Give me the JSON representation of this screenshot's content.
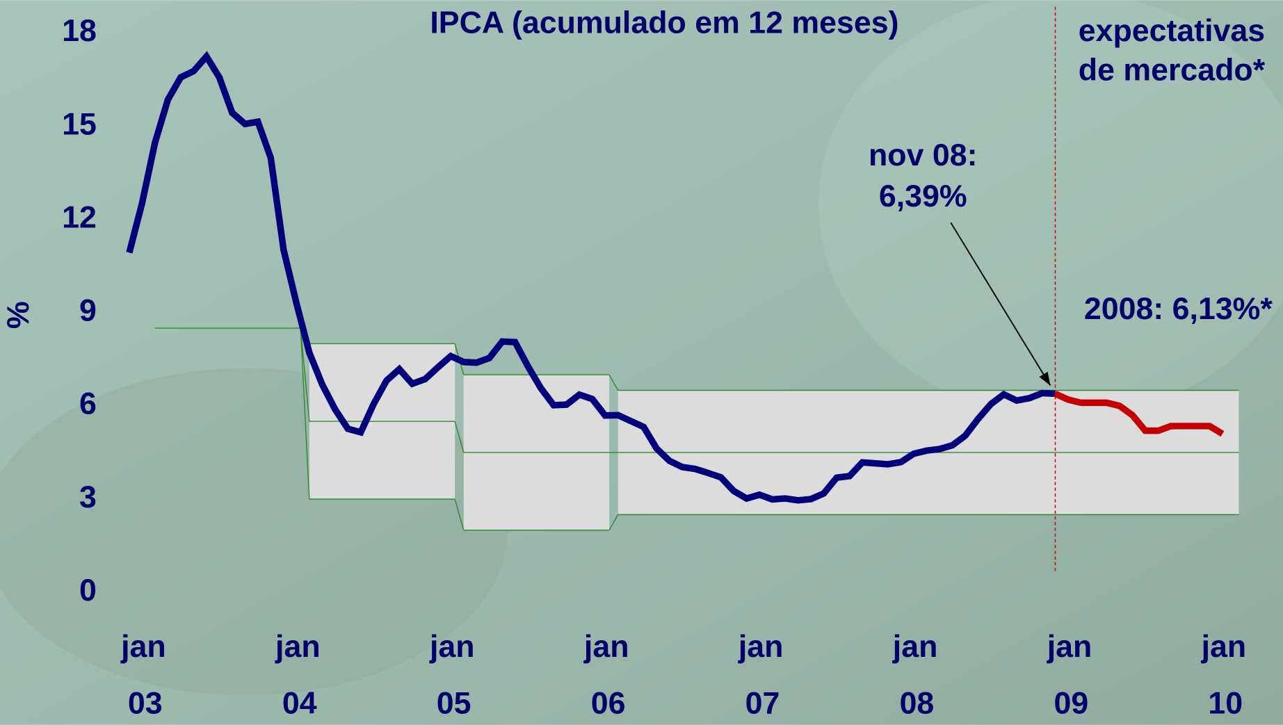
{
  "chart_data": {
    "type": "line",
    "title": "IPCA (acumulado em 12 meses)",
    "y_label": "%",
    "ylim": [
      0,
      18
    ],
    "yticks": [
      0,
      3,
      6,
      9,
      12,
      15,
      18
    ],
    "xlim": [
      "2002-11",
      "2009-12"
    ],
    "xticks": [
      {
        "value": "2003-01",
        "label": "jan"
      },
      {
        "value": "2004-01",
        "label": "jan"
      },
      {
        "value": "2005-01",
        "label": "jan"
      },
      {
        "value": "2006-01",
        "label": "jan"
      },
      {
        "value": "2007-01",
        "label": "jan"
      },
      {
        "value": "2008-01",
        "label": "jan"
      },
      {
        "value": "2009-01",
        "label": "jan"
      },
      {
        "value": "2010-01",
        "label": "jan"
      }
    ],
    "xticks_year": [
      {
        "value": "2003-01",
        "label": "03"
      },
      {
        "value": "2004-01",
        "label": "04"
      },
      {
        "value": "2005-01",
        "label": "05"
      },
      {
        "value": "2006-01",
        "label": "06"
      },
      {
        "value": "2007-01",
        "label": "07"
      },
      {
        "value": "2008-01",
        "label": "08"
      },
      {
        "value": "2009-01",
        "label": "09"
      },
      {
        "value": "2010-01",
        "label": "10"
      }
    ],
    "x": [
      "2002-11",
      "2002-12",
      "2003-01",
      "2003-02",
      "2003-03",
      "2003-04",
      "2003-05",
      "2003-06",
      "2003-07",
      "2003-08",
      "2003-09",
      "2003-10",
      "2003-11",
      "2003-12",
      "2004-01",
      "2004-02",
      "2004-03",
      "2004-04",
      "2004-05",
      "2004-06",
      "2004-07",
      "2004-08",
      "2004-09",
      "2004-10",
      "2004-11",
      "2004-12",
      "2005-01",
      "2005-02",
      "2005-03",
      "2005-04",
      "2005-05",
      "2005-06",
      "2005-07",
      "2005-08",
      "2005-09",
      "2005-10",
      "2005-11",
      "2005-12",
      "2006-01",
      "2006-02",
      "2006-03",
      "2006-04",
      "2006-05",
      "2006-06",
      "2006-07",
      "2006-08",
      "2006-09",
      "2006-10",
      "2006-11",
      "2006-12",
      "2007-01",
      "2007-02",
      "2007-03",
      "2007-04",
      "2007-05",
      "2007-06",
      "2007-07",
      "2007-08",
      "2007-09",
      "2007-10",
      "2007-11",
      "2007-12",
      "2008-01",
      "2008-02",
      "2008-03",
      "2008-04",
      "2008-05",
      "2008-06",
      "2008-07",
      "2008-08",
      "2008-09",
      "2008-10",
      "2008-11",
      "2008-12",
      "2009-01",
      "2009-02",
      "2009-03",
      "2009-04",
      "2009-05",
      "2009-06",
      "2009-07",
      "2009-08",
      "2009-09",
      "2009-10",
      "2009-11",
      "2009-12"
    ],
    "series": [
      {
        "color": "#00007a",
        "values": [
          10.93,
          12.53,
          14.47,
          15.85,
          16.57,
          16.77,
          17.24,
          16.57,
          15.43,
          15.07,
          15.14,
          13.98,
          11.02,
          9.3,
          7.71,
          6.69,
          5.89,
          5.26,
          5.15,
          6.06,
          6.81,
          7.18,
          6.71,
          6.86,
          7.24,
          7.6,
          7.41,
          7.39,
          7.54,
          8.07,
          8.05,
          7.27,
          6.57,
          6.02,
          6.04,
          6.36,
          6.22,
          5.69,
          5.7,
          5.51,
          5.32,
          4.63,
          4.23,
          4.03,
          3.97,
          3.84,
          3.7,
          3.26,
          3.02,
          3.14,
          2.99,
          3.02,
          2.96,
          3.0,
          3.18,
          3.69,
          3.74,
          4.18,
          4.15,
          4.12,
          4.19,
          4.46,
          4.56,
          4.61,
          4.73,
          5.04,
          5.58,
          6.06,
          6.37,
          6.17,
          6.25,
          6.41,
          6.39,
          null,
          null,
          null,
          null,
          null,
          null,
          null,
          null,
          null,
          null,
          null,
          null,
          null
        ]
      },
      {
        "color": "#c40000",
        "values": [
          null,
          null,
          null,
          null,
          null,
          null,
          null,
          null,
          null,
          null,
          null,
          null,
          null,
          null,
          null,
          null,
          null,
          null,
          null,
          null,
          null,
          null,
          null,
          null,
          null,
          null,
          null,
          null,
          null,
          null,
          null,
          null,
          null,
          null,
          null,
          null,
          null,
          null,
          null,
          null,
          null,
          null,
          null,
          null,
          null,
          null,
          null,
          null,
          null,
          null,
          null,
          null,
          null,
          null,
          null,
          null,
          null,
          null,
          null,
          null,
          null,
          null,
          null,
          null,
          null,
          null,
          null,
          null,
          null,
          null,
          null,
          null,
          6.39,
          6.2,
          6.1,
          6.1,
          6.1,
          6.0,
          5.7,
          5.2,
          5.2,
          5.35,
          5.35,
          5.35,
          5.35,
          5.1
        ]
      }
    ],
    "target_bands": [
      {
        "start": "2003-01",
        "end": "2003-12",
        "center": 8.5
      },
      {
        "start": "2004-01",
        "end": "2004-12",
        "upper": 8,
        "center": 5.5,
        "lower": 3
      },
      {
        "start": "2005-01",
        "end": "2005-12",
        "upper": 7,
        "center": 4.5,
        "lower": 2
      },
      {
        "start": "2006-01",
        "end": "2009-12",
        "upper": 6.5,
        "center": 4.5,
        "lower": 2.5
      }
    ],
    "band_color": "#dcdcdc",
    "band_line_color": "#2f8a2f",
    "forecast_start": "2008-11",
    "divider_color": "#d01010",
    "annotations": [
      {
        "text": [
          "nov 08:",
          "6,39%"
        ]
      },
      {
        "text": [
          "2008: 6,13%*"
        ]
      },
      {
        "text": [
          "expectativas",
          "de mercado*"
        ]
      }
    ]
  }
}
